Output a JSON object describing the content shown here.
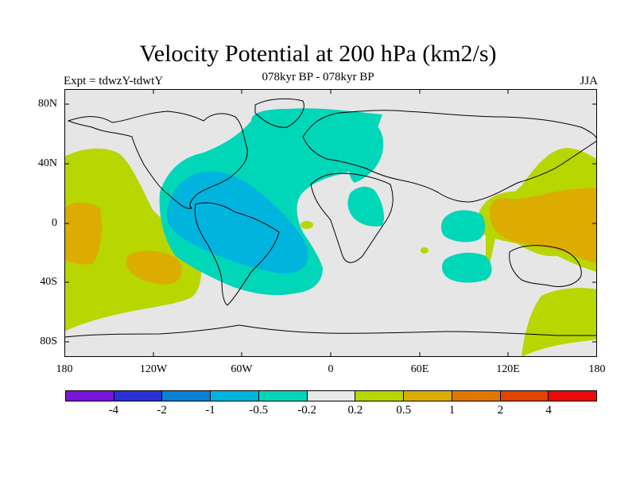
{
  "header": {
    "title": "Velocity Potential at 200 hPa (km2/s)",
    "subtitle": "078kyr BP - 078kyr BP",
    "expt": "Expt = tdwzY-tdwtY",
    "season": "JJA"
  },
  "axes": {
    "y_ticks": [
      "80N",
      "40N",
      "0",
      "40S",
      "80S"
    ],
    "x_ticks": [
      "180",
      "120W",
      "60W",
      "0",
      "60E",
      "120E",
      "180"
    ]
  },
  "colorbar": {
    "colors": [
      "#7a14d8",
      "#2a32d6",
      "#0b80d4",
      "#00b4de",
      "#00d6b8",
      "#e8e8e8",
      "#b8d600",
      "#dcac00",
      "#e07800",
      "#e04400",
      "#ea0a0a"
    ],
    "labels": [
      "-4",
      "-2",
      "-1",
      "-0.5",
      "-0.2",
      "0.2",
      "0.5",
      "1",
      "2",
      "4"
    ]
  },
  "map_colors": {
    "background": "#e6e6e6",
    "neg_weak": "#00d6b8",
    "neg_mid": "#00b4de",
    "pos_weak": "#b8d600",
    "pos_mid": "#dcac00"
  }
}
